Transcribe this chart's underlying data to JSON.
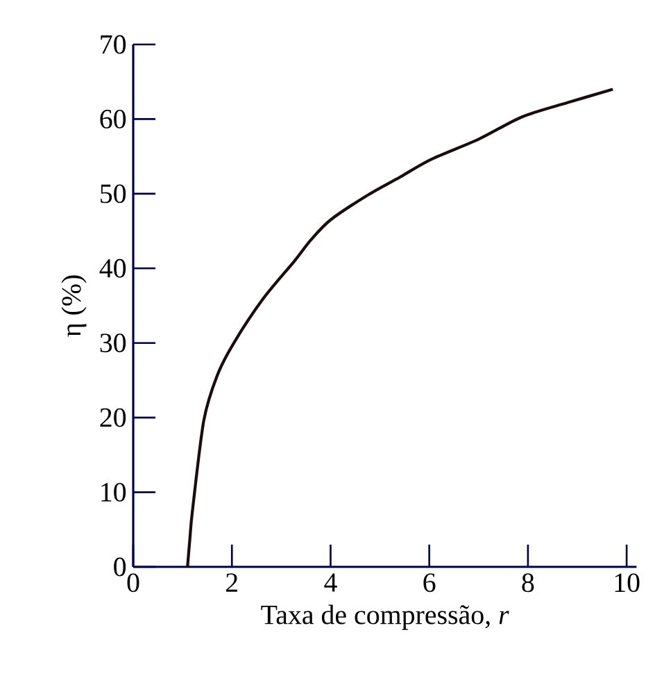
{
  "chart_data": {
    "type": "line",
    "xlabel": "Taxa de compressão, *r*",
    "ylabel": "η (%)",
    "x": [
      1.1,
      1.15,
      1.2,
      1.43,
      1.7,
      2.03,
      2.63,
      3.27,
      3.6,
      4.0,
      4.75,
      5.4,
      6.04,
      7.0,
      7.88,
      8.8,
      9.72
    ],
    "series": [
      {
        "color": "#1a0d0d",
        "values": [
          0,
          3.9,
          7.5,
          19.6,
          25.6,
          29.9,
          35.9,
          41.0,
          43.8,
          46.5,
          49.8,
          52.2,
          54.6,
          57.3,
          60.3,
          62.2,
          64.0
        ]
      }
    ],
    "xlim": [
      0,
      10.2
    ],
    "ylim": [
      0,
      70
    ],
    "xticks": [
      0,
      2,
      4,
      6,
      8,
      10
    ],
    "yticks": [
      0,
      10,
      20,
      30,
      40,
      50,
      60,
      70
    ],
    "grid": false,
    "marker": "none",
    "line_style": "solid"
  }
}
